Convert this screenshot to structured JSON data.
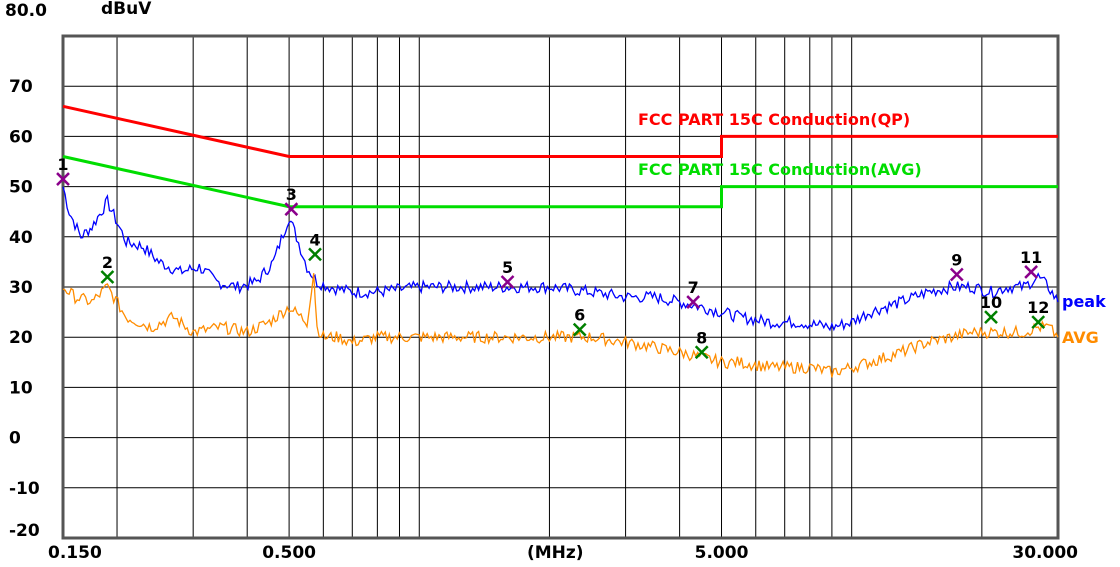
{
  "chart_data": {
    "type": "line",
    "ylabel": "dBuV",
    "xlabel": "(MHz)",
    "x_scale": "log",
    "xlim": [
      0.15,
      30
    ],
    "ylim": [
      -20,
      80
    ],
    "y_top_label": "80.0",
    "y_ticks": [
      "70",
      "60",
      "50",
      "40",
      "30",
      "20",
      "10",
      "0",
      "-10",
      "-20"
    ],
    "y_tick_values": [
      70,
      60,
      50,
      40,
      30,
      20,
      10,
      0,
      -10,
      -20
    ],
    "x_tick_labels": [
      {
        "label": "0.150",
        "value": 0.15
      },
      {
        "label": "0.500",
        "value": 0.5
      },
      {
        "label": "5.000",
        "value": 5
      },
      {
        "label": "30.000",
        "value": 30
      }
    ],
    "grid": true,
    "limits": [
      {
        "name": "FCC PART 15C  Conduction(QP)",
        "color": "#ff0000",
        "x": [
          0.15,
          0.5,
          0.5,
          5,
          5,
          30
        ],
        "y": [
          66,
          56,
          56,
          56,
          60,
          60
        ]
      },
      {
        "name": "FCC PART 15C  Conduction(AVG)",
        "color": "#00dd00",
        "x": [
          0.15,
          0.5,
          0.5,
          5,
          5,
          30
        ],
        "y": [
          56,
          46,
          46,
          46,
          50,
          50
        ]
      }
    ],
    "series": [
      {
        "name": "peak",
        "color": "#0000ff",
        "x": [
          0.15,
          0.155,
          0.165,
          0.175,
          0.19,
          0.21,
          0.23,
          0.25,
          0.28,
          0.31,
          0.34,
          0.38,
          0.42,
          0.46,
          0.5,
          0.52,
          0.55,
          0.58,
          0.62,
          0.7,
          0.8,
          1.0,
          1.3,
          1.7,
          2.0,
          2.5,
          3.0,
          3.5,
          4.0,
          4.5,
          5.0,
          5.5,
          6.5,
          7.5,
          9.0,
          10.0,
          11.0,
          13.0,
          15.0,
          17.0,
          19.0,
          21.0,
          23.0,
          25.0,
          27.0,
          28.5,
          30.0
        ],
        "y": [
          50,
          45,
          40,
          42,
          47,
          39,
          38,
          35,
          33,
          34,
          31,
          30,
          31,
          35,
          44,
          40,
          34,
          31,
          30,
          29,
          29,
          30,
          30,
          30,
          30,
          29,
          28,
          28,
          27,
          26,
          25,
          24,
          23,
          23,
          22,
          23,
          25,
          27,
          29,
          30,
          30,
          29,
          30,
          30,
          32,
          30,
          27
        ]
      },
      {
        "name": "AVG",
        "color": "#ff8c00",
        "x": [
          0.15,
          0.16,
          0.175,
          0.19,
          0.21,
          0.24,
          0.27,
          0.3,
          0.35,
          0.4,
          0.45,
          0.5,
          0.55,
          0.57,
          0.58,
          0.6,
          0.65,
          0.7,
          0.8,
          1.0,
          1.3,
          1.7,
          2.0,
          2.5,
          3.0,
          3.5,
          4.0,
          4.5,
          5.0,
          5.5,
          6.5,
          8.0,
          9.0,
          10.0,
          11.0,
          13.0,
          15.0,
          17.0,
          19.0,
          21.0,
          23.0,
          25.0,
          27.0,
          28.5,
          30.0
        ],
        "y": [
          30,
          28,
          27,
          30,
          24,
          22,
          24,
          21,
          22,
          21,
          23,
          26,
          23,
          33,
          22,
          20,
          20,
          19,
          20,
          20,
          20,
          20,
          20,
          20,
          19,
          18,
          17,
          16,
          15,
          15,
          14,
          14,
          13,
          14,
          15,
          17,
          19,
          20,
          21,
          21,
          21,
          21,
          22,
          22,
          20
        ]
      }
    ],
    "legend": [
      {
        "label": "peak",
        "color": "#0000ff"
      },
      {
        "label": "AVG",
        "color": "#ff8c00"
      }
    ],
    "markers": [
      {
        "label": "1",
        "x": 0.15,
        "y": 51.5,
        "color": "#8b008b"
      },
      {
        "label": "2",
        "x": 0.19,
        "y": 32,
        "color": "#008000"
      },
      {
        "label": "3",
        "x": 0.506,
        "y": 45.5,
        "color": "#8b008b"
      },
      {
        "label": "4",
        "x": 0.574,
        "y": 36.5,
        "color": "#008000"
      },
      {
        "label": "5",
        "x": 1.6,
        "y": 31,
        "color": "#8b008b"
      },
      {
        "label": "6",
        "x": 2.35,
        "y": 21.5,
        "color": "#008000"
      },
      {
        "label": "7",
        "x": 4.3,
        "y": 27,
        "color": "#8b008b"
      },
      {
        "label": "8",
        "x": 4.5,
        "y": 17,
        "color": "#008000"
      },
      {
        "label": "9",
        "x": 17.5,
        "y": 32.5,
        "color": "#8b008b"
      },
      {
        "label": "10",
        "x": 21.0,
        "y": 24,
        "color": "#008000"
      },
      {
        "label": "11",
        "x": 26.0,
        "y": 33,
        "color": "#8b008b"
      },
      {
        "label": "12",
        "x": 27.0,
        "y": 23,
        "color": "#008000"
      }
    ]
  }
}
